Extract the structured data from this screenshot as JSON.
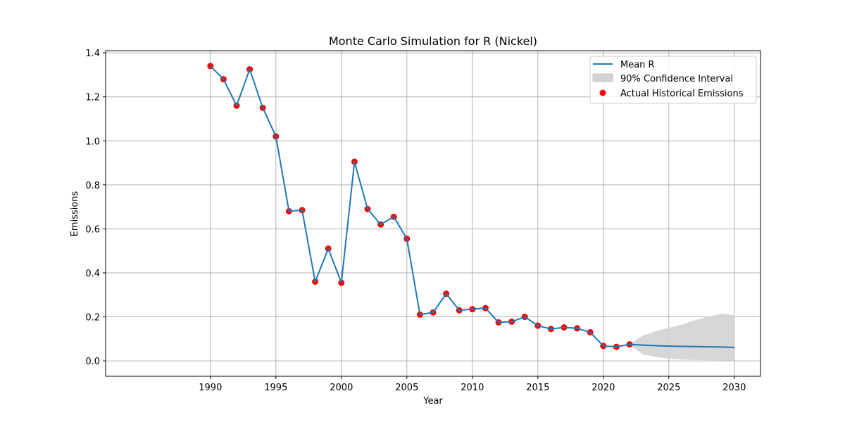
{
  "chart_data": {
    "type": "line",
    "title": "Monte Carlo Simulation for R (Nickel)",
    "xlabel": "Year",
    "ylabel": "Emissions",
    "xlim": [
      1982.0,
      2032.0
    ],
    "ylim": [
      -0.07,
      1.41
    ],
    "xticks": [
      1990,
      1995,
      2000,
      2005,
      2010,
      2015,
      2020,
      2025,
      2030
    ],
    "xtick_labels": [
      "1990",
      "1995",
      "2000",
      "2005",
      "2010",
      "2015",
      "2020",
      "2025",
      "2030"
    ],
    "yticks": [
      0.0,
      0.2,
      0.4,
      0.6,
      0.8,
      1.0,
      1.2,
      1.4
    ],
    "ytick_labels": [
      "0.0",
      "0.2",
      "0.4",
      "0.6",
      "0.8",
      "1.0",
      "1.2",
      "1.4"
    ],
    "grid": true,
    "legend_position": "top-right",
    "legend": [
      "Mean R",
      "90% Confidence Interval",
      "Actual Historical Emissions"
    ],
    "colors": {
      "line": "#1f77b4",
      "points": "#ff0000",
      "band": "#d3d3d3",
      "grid": "#b0b0b0"
    },
    "series": [
      {
        "name": "Mean R",
        "x": [
          1990,
          1991,
          1992,
          1993,
          1994,
          1995,
          1996,
          1997,
          1998,
          1999,
          2000,
          2001,
          2002,
          2003,
          2004,
          2005,
          2006,
          2007,
          2008,
          2009,
          2010,
          2011,
          2012,
          2013,
          2014,
          2015,
          2016,
          2017,
          2018,
          2019,
          2020,
          2021,
          2022,
          2023,
          2024,
          2025,
          2026,
          2027,
          2028,
          2029,
          2030
        ],
        "y": [
          1.34,
          1.28,
          1.16,
          1.325,
          1.15,
          1.02,
          0.68,
          0.685,
          0.36,
          0.51,
          0.355,
          0.905,
          0.69,
          0.62,
          0.655,
          0.555,
          0.21,
          0.22,
          0.305,
          0.23,
          0.235,
          0.24,
          0.175,
          0.178,
          0.2,
          0.16,
          0.145,
          0.152,
          0.148,
          0.13,
          0.068,
          0.064,
          0.075,
          0.072,
          0.069,
          0.067,
          0.066,
          0.065,
          0.064,
          0.063,
          0.061
        ]
      },
      {
        "name": "90% Confidence Interval",
        "x": [
          2022,
          2023,
          2024,
          2025,
          2026,
          2027,
          2028,
          2029,
          2030
        ],
        "lower": [
          0.075,
          0.03,
          0.018,
          0.01,
          0.006,
          0.004,
          0.003,
          0.002,
          0.001
        ],
        "upper": [
          0.075,
          0.115,
          0.135,
          0.15,
          0.165,
          0.185,
          0.2,
          0.215,
          0.208
        ]
      },
      {
        "name": "Actual Historical Emissions",
        "x": [
          1990,
          1991,
          1992,
          1993,
          1994,
          1995,
          1996,
          1997,
          1998,
          1999,
          2000,
          2001,
          2002,
          2003,
          2004,
          2005,
          2006,
          2007,
          2008,
          2009,
          2010,
          2011,
          2012,
          2013,
          2014,
          2015,
          2016,
          2017,
          2018,
          2019,
          2020,
          2021,
          2022
        ],
        "y": [
          1.34,
          1.28,
          1.16,
          1.325,
          1.15,
          1.02,
          0.68,
          0.685,
          0.36,
          0.51,
          0.355,
          0.905,
          0.69,
          0.62,
          0.655,
          0.555,
          0.21,
          0.22,
          0.305,
          0.23,
          0.235,
          0.24,
          0.175,
          0.178,
          0.2,
          0.16,
          0.145,
          0.152,
          0.148,
          0.13,
          0.068,
          0.064,
          0.075
        ]
      }
    ]
  }
}
